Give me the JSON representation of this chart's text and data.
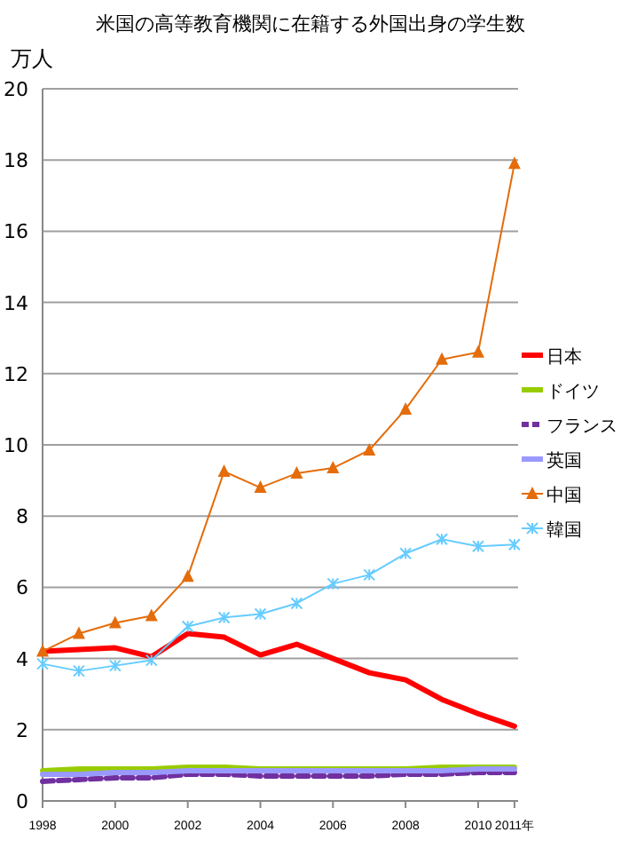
{
  "chart_data": {
    "type": "line",
    "title": "米国の高等教育機関に在籍する外国出身の学生数",
    "ylabel": "万人",
    "x": [
      1998,
      1999,
      2000,
      2001,
      2002,
      2003,
      2004,
      2005,
      2006,
      2007,
      2008,
      2009,
      2010,
      2011
    ],
    "xlim": [
      1998,
      2011.1
    ],
    "xticks": [
      1998,
      2000,
      2002,
      2004,
      2006,
      2008,
      2010,
      {
        "value": 2011,
        "label": "2011年"
      }
    ],
    "ylim": [
      0,
      20
    ],
    "yticks": [
      0,
      2,
      4,
      6,
      8,
      10,
      12,
      14,
      16,
      18,
      20
    ],
    "grid": "y",
    "legend": "right",
    "series": [
      {
        "name": "日本",
        "color": "#ff0000",
        "marker": "none",
        "line_style": "solid",
        "values": [
          4.2,
          4.25,
          4.3,
          4.05,
          4.7,
          4.6,
          4.1,
          4.4,
          4.0,
          3.6,
          3.4,
          2.85,
          2.45,
          2.1
        ]
      },
      {
        "name": "ドイツ",
        "color": "#99cc00",
        "marker": "none",
        "line_style": "solid",
        "values": [
          0.85,
          0.9,
          0.9,
          0.9,
          0.95,
          0.95,
          0.9,
          0.9,
          0.9,
          0.9,
          0.9,
          0.95,
          0.95,
          0.95
        ]
      },
      {
        "name": "フランス",
        "color": "#7030a0",
        "marker": "none",
        "line_style": "dashed",
        "values": [
          0.55,
          0.6,
          0.65,
          0.65,
          0.75,
          0.75,
          0.7,
          0.7,
          0.7,
          0.7,
          0.75,
          0.75,
          0.8,
          0.8
        ]
      },
      {
        "name": "英国",
        "color": "#9999ff",
        "marker": "none",
        "line_style": "solid",
        "values": [
          0.75,
          0.75,
          0.8,
          0.8,
          0.85,
          0.85,
          0.85,
          0.85,
          0.85,
          0.85,
          0.85,
          0.85,
          0.9,
          0.9
        ]
      },
      {
        "name": "中国",
        "color": "#e46c0a",
        "marker": "triangle",
        "line_style": "solid",
        "values": [
          4.2,
          4.7,
          5.0,
          5.2,
          6.3,
          9.25,
          8.8,
          9.2,
          9.35,
          9.85,
          11.0,
          12.4,
          12.6,
          17.9
        ]
      },
      {
        "name": "韓国",
        "color": "#66ccff",
        "marker": "cross",
        "line_style": "solid",
        "values": [
          3.85,
          3.65,
          3.8,
          3.95,
          4.9,
          5.15,
          5.25,
          5.55,
          6.1,
          6.35,
          6.95,
          7.35,
          7.15,
          7.2
        ]
      }
    ]
  }
}
